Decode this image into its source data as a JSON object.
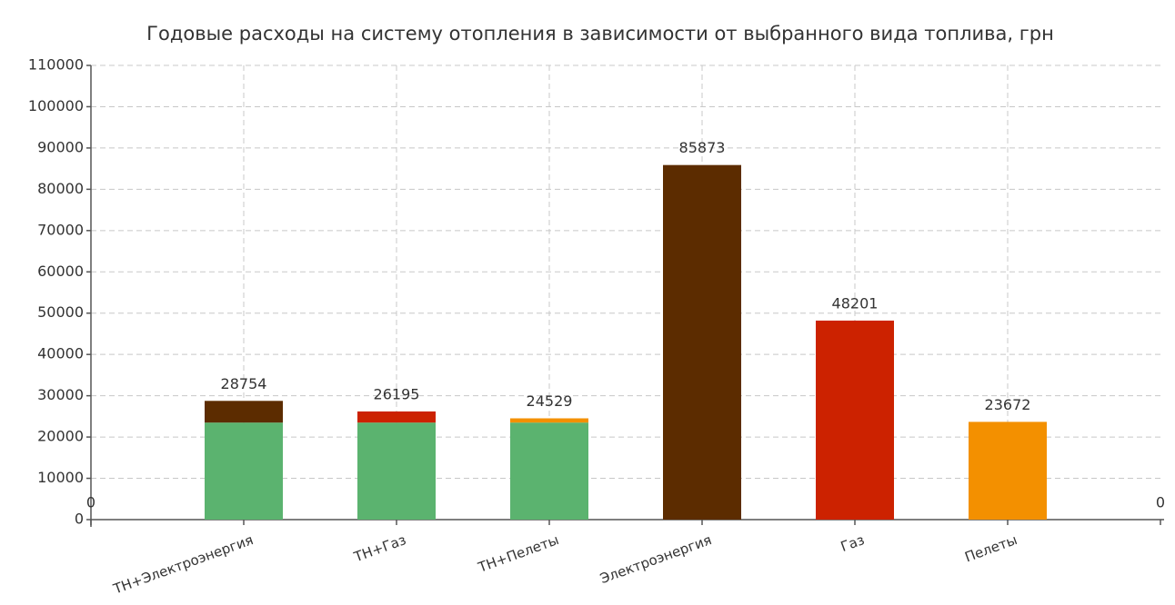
{
  "chart_data": {
    "type": "stacked_bar",
    "title": "Годовые расходы на систему отопления в зависимости от выбранного вида топлива, грн",
    "categories": [
      null,
      "ТН+Электроэнергия",
      "ТН+Газ",
      "ТН+Пелеты",
      "Электроэнергия",
      "Газ",
      "Пелеты",
      null
    ],
    "series": [
      {
        "color": "#5bb36f",
        "values": [
          null,
          23500,
          23500,
          23500,
          null,
          null,
          null,
          null
        ]
      },
      {
        "color": "#5c2c00",
        "values": [
          null,
          5254,
          null,
          null,
          85873,
          null,
          null,
          null
        ]
      },
      {
        "color": "#cc2200",
        "values": [
          null,
          null,
          2695,
          null,
          null,
          48201,
          null,
          null
        ]
      },
      {
        "color": "#f39000",
        "values": [
          null,
          null,
          null,
          1029,
          null,
          null,
          23672,
          null
        ]
      }
    ],
    "totals": [
      0,
      28754,
      26195,
      24529,
      85873,
      48201,
      23672,
      0
    ],
    "ylim": [
      0,
      110000
    ],
    "yticks": [
      0,
      10000,
      20000,
      30000,
      40000,
      50000,
      60000,
      70000,
      80000,
      90000,
      100000,
      110000
    ],
    "grid": true
  }
}
